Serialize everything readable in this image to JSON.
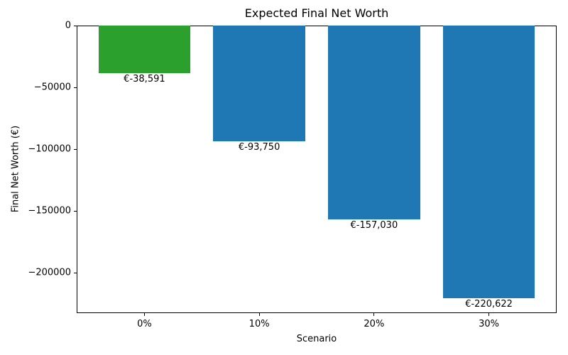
{
  "chart_data": {
    "type": "bar",
    "title": "Expected Final Net Worth",
    "xlabel": "Scenario",
    "ylabel": "Final Net Worth (€)",
    "categories": [
      "0%",
      "10%",
      "20%",
      "30%"
    ],
    "values": [
      -38591,
      -93750,
      -157030,
      -220622
    ],
    "bar_value_labels": [
      "€-38,591",
      "€-93,750",
      "€-157,030",
      "€-220,622"
    ],
    "bar_colors": [
      "#2ca02c",
      "#1f77b4",
      "#1f77b4",
      "#1f77b4"
    ],
    "bar_width_fraction": 0.8,
    "yticks": [
      0,
      -50000,
      -100000,
      -150000,
      -200000
    ],
    "ytick_labels": [
      "0",
      "−50000",
      "−100000",
      "−150000",
      "−200000"
    ],
    "ylim": [
      -232700,
      0
    ],
    "grid": false,
    "legend": "none",
    "axis_color": "#000000",
    "text_color": "#000000",
    "background_color": "#ffffff"
  }
}
